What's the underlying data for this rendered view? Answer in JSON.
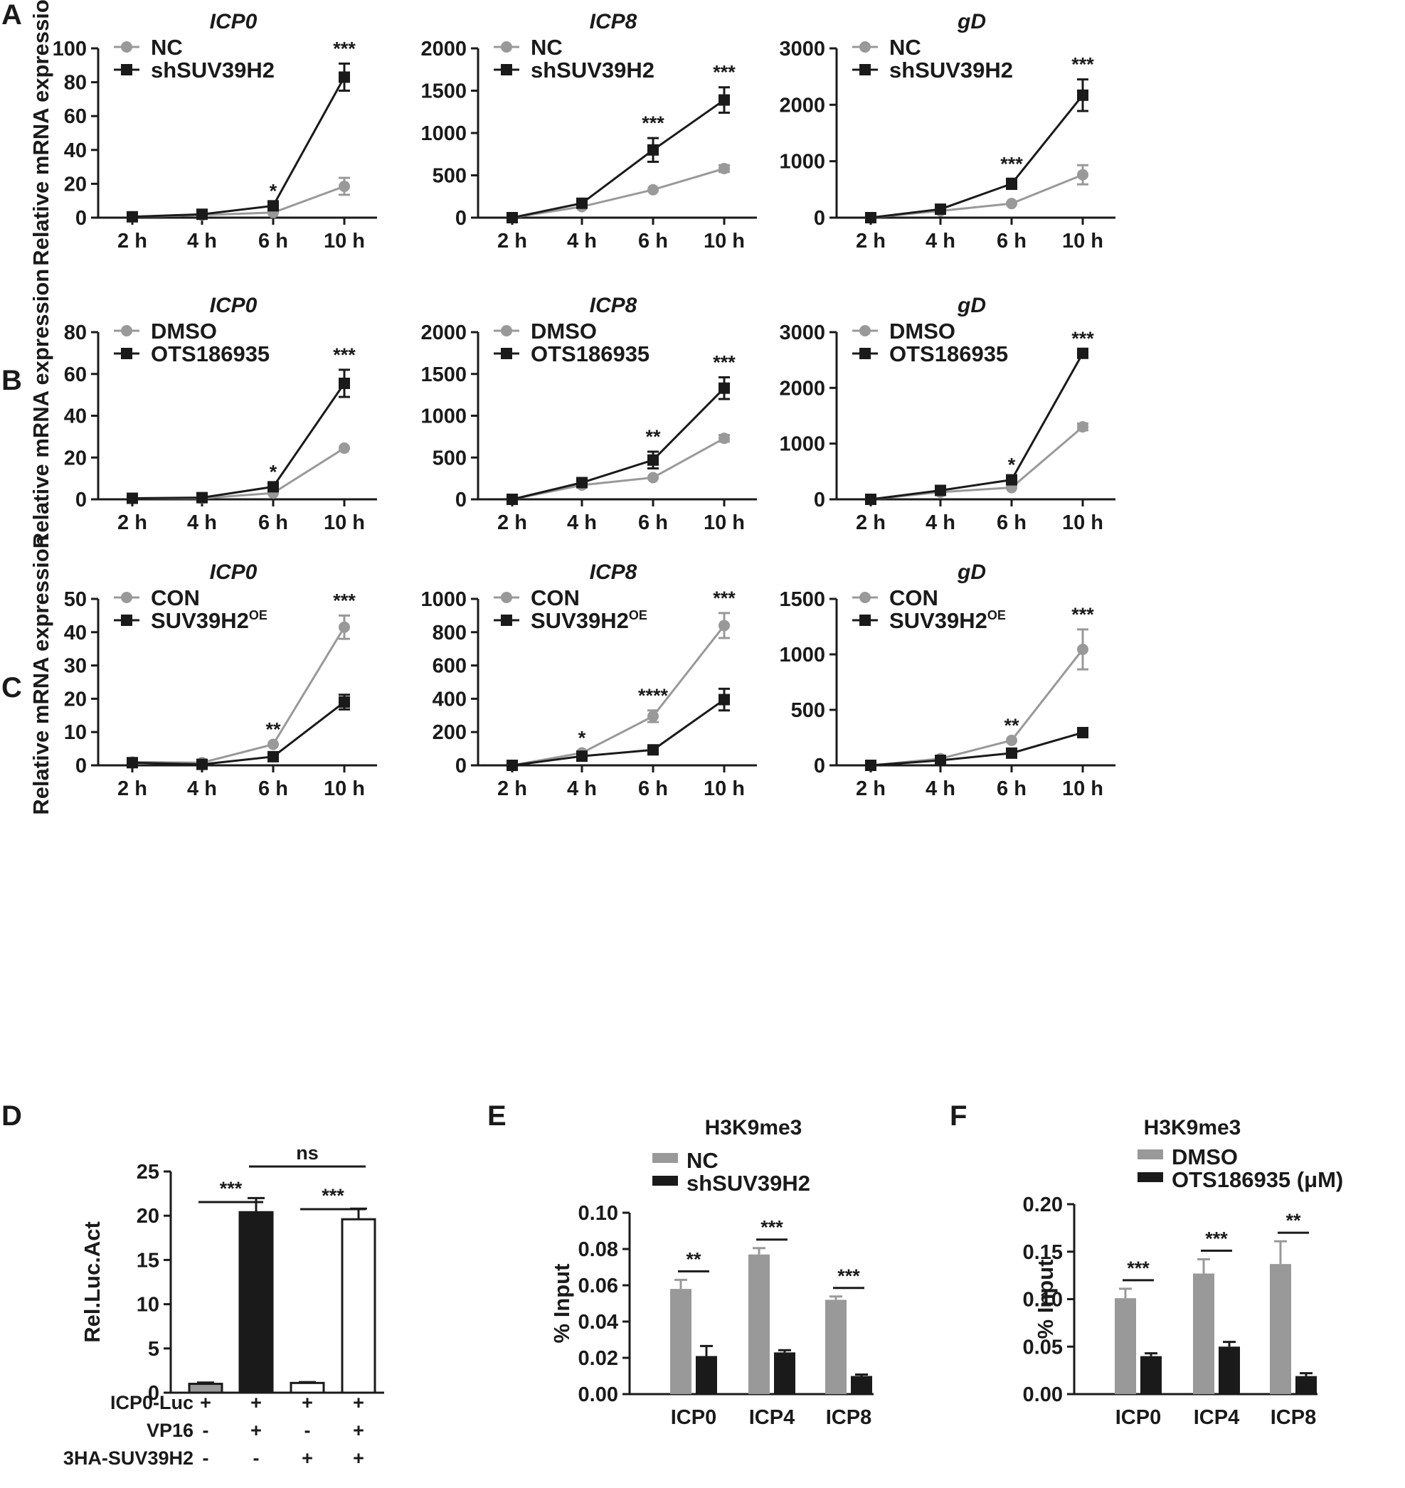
{
  "figure": {
    "panel_letters": [
      "A",
      "B",
      "C",
      "D",
      "E",
      "F"
    ],
    "row_ylabel": "Relative mRNA expression"
  },
  "chart_data": [
    {
      "id": "A1",
      "panel": "A",
      "type": "line",
      "title": "ICP0",
      "ylabel": "Relative mRNA expression",
      "ylim": [
        0,
        100
      ],
      "yticks": [
        0,
        20,
        40,
        60,
        80,
        100
      ],
      "categories": [
        "2 h",
        "4 h",
        "6 h",
        "10 h"
      ],
      "series": [
        {
          "name": "NC",
          "color": "#999999",
          "marker": "circle",
          "values": [
            0.5,
            1.5,
            3,
            18.5
          ],
          "errors": [
            0,
            0,
            0,
            5
          ]
        },
        {
          "name": "shSUV39H2",
          "color": "#1a1a1a",
          "marker": "square",
          "values": [
            0.5,
            2,
            7,
            83
          ],
          "errors": [
            0,
            0,
            0,
            8
          ]
        }
      ],
      "significance": [
        "",
        "",
        "*",
        "***"
      ]
    },
    {
      "id": "A2",
      "panel": "A",
      "type": "line",
      "title": "ICP8",
      "ylabel": "",
      "ylim": [
        0,
        2000
      ],
      "yticks": [
        0,
        500,
        1000,
        1500,
        2000
      ],
      "categories": [
        "2 h",
        "4 h",
        "6 h",
        "10 h"
      ],
      "series": [
        {
          "name": "NC",
          "color": "#999999",
          "marker": "circle",
          "values": [
            0,
            130,
            330,
            580
          ],
          "errors": [
            0,
            0,
            0,
            40
          ]
        },
        {
          "name": "shSUV39H2",
          "color": "#1a1a1a",
          "marker": "square",
          "values": [
            0,
            170,
            800,
            1390
          ],
          "errors": [
            0,
            0,
            140,
            150
          ]
        }
      ],
      "significance": [
        "",
        "",
        "***",
        "***"
      ]
    },
    {
      "id": "A3",
      "panel": "A",
      "type": "line",
      "title": "gD",
      "ylabel": "",
      "ylim": [
        0,
        3000
      ],
      "yticks": [
        0,
        1000,
        2000,
        3000
      ],
      "categories": [
        "2 h",
        "4 h",
        "6 h",
        "10 h"
      ],
      "series": [
        {
          "name": "NC",
          "color": "#999999",
          "marker": "circle",
          "values": [
            0,
            120,
            250,
            760
          ],
          "errors": [
            0,
            0,
            0,
            170
          ]
        },
        {
          "name": "shSUV39H2",
          "color": "#1a1a1a",
          "marker": "square",
          "values": [
            0,
            150,
            600,
            2170
          ],
          "errors": [
            0,
            0,
            90,
            280
          ]
        }
      ],
      "significance": [
        "",
        "",
        "***",
        "***"
      ]
    },
    {
      "id": "B1",
      "panel": "B",
      "type": "line",
      "title": "ICP0",
      "ylabel": "Relative mRNA expression",
      "ylim": [
        0,
        80
      ],
      "yticks": [
        0,
        20,
        40,
        60,
        80
      ],
      "categories": [
        "2 h",
        "4 h",
        "6 h",
        "10 h"
      ],
      "series": [
        {
          "name": "DMSO",
          "color": "#999999",
          "marker": "circle",
          "values": [
            0.5,
            0.5,
            3,
            24.5
          ],
          "errors": [
            0,
            0,
            0,
            0
          ]
        },
        {
          "name": "OTS186935",
          "color": "#1a1a1a",
          "marker": "square",
          "values": [
            0.5,
            0.8,
            6,
            55.5
          ],
          "errors": [
            0,
            0,
            0,
            6.5
          ]
        }
      ],
      "significance": [
        "",
        "",
        "*",
        "***"
      ]
    },
    {
      "id": "B2",
      "panel": "B",
      "type": "line",
      "title": "ICP8",
      "ylabel": "",
      "ylim": [
        0,
        2000
      ],
      "yticks": [
        0,
        500,
        1000,
        1500,
        2000
      ],
      "categories": [
        "2 h",
        "4 h",
        "6 h",
        "10 h"
      ],
      "series": [
        {
          "name": "DMSO",
          "color": "#999999",
          "marker": "circle",
          "values": [
            0,
            170,
            260,
            730
          ],
          "errors": [
            0,
            0,
            0,
            40
          ]
        },
        {
          "name": "OTS186935",
          "color": "#1a1a1a",
          "marker": "square",
          "values": [
            0,
            200,
            470,
            1330
          ],
          "errors": [
            0,
            0,
            100,
            130
          ]
        }
      ],
      "significance": [
        "",
        "",
        "**",
        "***"
      ]
    },
    {
      "id": "B3",
      "panel": "B",
      "type": "line",
      "title": "gD",
      "ylabel": "",
      "ylim": [
        0,
        3000
      ],
      "yticks": [
        0,
        1000,
        2000,
        3000
      ],
      "categories": [
        "2 h",
        "4 h",
        "6 h",
        "10 h"
      ],
      "series": [
        {
          "name": "DMSO",
          "color": "#999999",
          "marker": "circle",
          "values": [
            0,
            130,
            210,
            1300
          ],
          "errors": [
            0,
            0,
            0,
            60
          ]
        },
        {
          "name": "OTS186935",
          "color": "#1a1a1a",
          "marker": "square",
          "values": [
            0,
            160,
            350,
            2620
          ],
          "errors": [
            0,
            0,
            0,
            0
          ]
        }
      ],
      "significance": [
        "",
        "",
        "*",
        "***"
      ]
    },
    {
      "id": "C1",
      "panel": "C",
      "type": "line",
      "title": "ICP0",
      "ylabel": "Relative mRNA expression",
      "ylim": [
        0,
        50
      ],
      "yticks": [
        0,
        10,
        20,
        30,
        40,
        50
      ],
      "categories": [
        "2 h",
        "4 h",
        "6 h",
        "10 h"
      ],
      "series": [
        {
          "name": "CON",
          "color": "#999999",
          "marker": "circle",
          "values": [
            1,
            0.8,
            6.3,
            41.5
          ],
          "errors": [
            0,
            0,
            0,
            3.5
          ]
        },
        {
          "name": "SUV39H2",
          "superscript": "OE",
          "color": "#1a1a1a",
          "marker": "square",
          "values": [
            0.8,
            0.3,
            2.6,
            19
          ],
          "errors": [
            0,
            0,
            0,
            2.2
          ]
        }
      ],
      "significance": [
        "",
        "",
        "**",
        "***"
      ]
    },
    {
      "id": "C2",
      "panel": "C",
      "type": "line",
      "title": "ICP8",
      "ylabel": "",
      "ylim": [
        0,
        1000
      ],
      "yticks": [
        0,
        200,
        400,
        600,
        800,
        1000
      ],
      "categories": [
        "2 h",
        "4 h",
        "6 h",
        "10 h"
      ],
      "series": [
        {
          "name": "CON",
          "color": "#999999",
          "marker": "circle",
          "values": [
            0,
            75,
            295,
            840
          ],
          "errors": [
            0,
            0,
            35,
            75
          ]
        },
        {
          "name": "SUV39H2",
          "superscript": "OE",
          "color": "#1a1a1a",
          "marker": "square",
          "values": [
            0,
            55,
            93,
            395
          ],
          "errors": [
            0,
            0,
            0,
            65
          ]
        }
      ],
      "significance": [
        "",
        "*",
        "****",
        "***"
      ]
    },
    {
      "id": "C3",
      "panel": "C",
      "type": "line",
      "title": "gD",
      "ylabel": "",
      "ylim": [
        0,
        1500
      ],
      "yticks": [
        0,
        500,
        1000,
        1500
      ],
      "categories": [
        "2 h",
        "4 h",
        "6 h",
        "10 h"
      ],
      "series": [
        {
          "name": "CON",
          "color": "#999999",
          "marker": "circle",
          "values": [
            0,
            60,
            225,
            1045
          ],
          "errors": [
            0,
            0,
            0,
            180
          ]
        },
        {
          "name": "SUV39H2",
          "superscript": "OE",
          "color": "#1a1a1a",
          "marker": "square",
          "values": [
            0,
            45,
            110,
            295
          ],
          "errors": [
            0,
            0,
            0,
            40
          ]
        }
      ],
      "significance": [
        "",
        "",
        "**",
        "***"
      ]
    },
    {
      "id": "D",
      "panel": "D",
      "type": "bar",
      "title": "",
      "ylabel": "Rel.Luc.Act",
      "ylim": [
        0,
        25
      ],
      "yticks": [
        0,
        5,
        10,
        15,
        20,
        25
      ],
      "values": [
        1.0,
        20.4,
        1.1,
        19.6
      ],
      "errors": [
        0.15,
        1.6,
        0.1,
        1.2
      ],
      "bar_fill": [
        "#999999",
        "#1a1a1a",
        "#ffffff",
        "#ffffff"
      ],
      "conditions": [
        {
          "label": "ICP0-Luc",
          "values": [
            "+",
            "+",
            "+",
            "+"
          ]
        },
        {
          "label": "VP16",
          "values": [
            "-",
            "+",
            "-",
            "+"
          ]
        },
        {
          "label": "3HA-SUV39H2",
          "values": [
            "-",
            "-",
            "+",
            "+"
          ]
        }
      ],
      "brackets": [
        {
          "from": 0,
          "to": 1,
          "text": "***"
        },
        {
          "from": 2,
          "to": 3,
          "text": "***"
        },
        {
          "from": 1,
          "to": 3,
          "text": "ns"
        }
      ]
    },
    {
      "id": "E",
      "panel": "E",
      "type": "bar",
      "title": "H3K9me3",
      "ylabel": "% Input",
      "ylim": [
        0,
        0.1
      ],
      "yticks": [
        "0.00",
        "0.02",
        "0.04",
        "0.06",
        "0.08",
        "0.10"
      ],
      "categories": [
        "ICP0",
        "ICP4",
        "ICP8"
      ],
      "series": [
        {
          "name": "NC",
          "color": "#999999",
          "values": [
            0.058,
            0.077,
            0.052
          ],
          "errors": [
            0.005,
            0.0035,
            0.0018
          ]
        },
        {
          "name": "shSUV39H2",
          "color": "#1a1a1a",
          "values": [
            0.021,
            0.023,
            0.01
          ],
          "errors": [
            0.0055,
            0.0012,
            0.0008
          ]
        }
      ],
      "significance": [
        "**",
        "***",
        "***"
      ]
    },
    {
      "id": "F",
      "panel": "F",
      "type": "bar",
      "title": "H3K9me3",
      "ylabel": "% Input",
      "ylim": [
        0,
        0.2
      ],
      "yticks": [
        "0.00",
        "0.05",
        "0.10",
        "0.15",
        "0.20"
      ],
      "categories": [
        "ICP0",
        "ICP4",
        "ICP8"
      ],
      "series": [
        {
          "name": "DMSO",
          "color": "#999999",
          "values": [
            0.101,
            0.127,
            0.137
          ],
          "errors": [
            0.01,
            0.015,
            0.024
          ]
        },
        {
          "name": "OTS186935 (μM)",
          "color": "#1a1a1a",
          "values": [
            0.04,
            0.05,
            0.019
          ],
          "errors": [
            0.003,
            0.005,
            0.003
          ]
        }
      ],
      "significance": [
        "***",
        "***",
        "**"
      ]
    }
  ]
}
